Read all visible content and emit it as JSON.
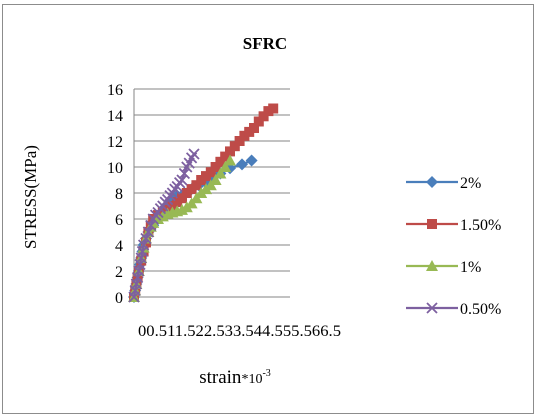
{
  "chart_data": {
    "type": "line",
    "title": "SFRC",
    "ylabel": "STRESS(MPa)",
    "xlabel_main": "strain",
    "xlabel_mult": "*10",
    "xlabel_exp": "-3",
    "x_tick_text": "00.511.522.533.544.555.566.5",
    "y_ticks": [
      0,
      2,
      4,
      6,
      8,
      10,
      12,
      14,
      16
    ],
    "xlim": [
      0,
      6.5
    ],
    "ylim": [
      0,
      16
    ],
    "grid": true,
    "legend_position": "right",
    "series": [
      {
        "name": "2%",
        "color": "#4a7ebb",
        "marker": "diamond",
        "x": [
          0.0,
          0.05,
          0.1,
          0.15,
          0.2,
          0.25,
          0.3,
          0.35,
          0.4,
          0.5,
          0.6,
          0.8,
          1.0,
          1.2,
          1.4,
          1.6,
          1.8,
          2.1,
          2.4,
          2.7,
          3.0,
          3.3,
          3.6,
          4.0,
          4.5,
          4.9
        ],
        "y": [
          0.0,
          0.5,
          1.0,
          1.5,
          2.0,
          2.5,
          3.0,
          3.5,
          4.0,
          4.5,
          5.0,
          5.5,
          6.0,
          6.5,
          7.0,
          7.6,
          7.8,
          8.0,
          8.3,
          8.6,
          8.8,
          9.2,
          9.5,
          9.9,
          10.2,
          10.5
        ]
      },
      {
        "name": "1.50%",
        "color": "#be4b48",
        "marker": "square",
        "x": [
          0.0,
          0.05,
          0.1,
          0.15,
          0.2,
          0.3,
          0.4,
          0.5,
          0.6,
          0.7,
          0.8,
          1.0,
          1.2,
          1.4,
          1.6,
          1.8,
          2.0,
          2.2,
          2.4,
          2.6,
          2.8,
          3.0,
          3.2,
          3.4,
          3.6,
          3.8,
          4.0,
          4.2,
          4.4,
          4.6,
          4.8,
          5.0,
          5.2,
          5.4,
          5.6,
          5.8
        ],
        "y": [
          0.0,
          0.5,
          1.0,
          1.5,
          2.0,
          2.8,
          3.5,
          4.2,
          5.0,
          5.5,
          6.0,
          6.3,
          6.5,
          6.7,
          7.0,
          7.3,
          7.6,
          8.0,
          8.3,
          8.6,
          9.0,
          9.3,
          9.6,
          10.0,
          10.4,
          10.8,
          11.2,
          11.6,
          12.0,
          12.4,
          12.7,
          13.0,
          13.5,
          13.9,
          14.3,
          14.5
        ]
      },
      {
        "name": "1%",
        "color": "#98b954",
        "marker": "triangle",
        "x": [
          0.0,
          0.05,
          0.1,
          0.2,
          0.3,
          0.4,
          0.5,
          0.6,
          0.7,
          0.8,
          1.0,
          1.2,
          1.4,
          1.6,
          1.8,
          2.0,
          2.2,
          2.4,
          2.6,
          2.8,
          3.0,
          3.2,
          3.4,
          3.6,
          3.8,
          4.0
        ],
        "y": [
          0.0,
          0.5,
          1.0,
          2.0,
          3.0,
          3.8,
          4.5,
          5.0,
          5.4,
          5.7,
          6.0,
          6.2,
          6.4,
          6.5,
          6.6,
          6.7,
          6.9,
          7.2,
          7.6,
          8.0,
          8.3,
          8.6,
          9.0,
          9.5,
          10.0,
          10.5
        ]
      },
      {
        "name": "0.50%",
        "color": "#7d60a0",
        "marker": "x",
        "x": [
          0.0,
          0.05,
          0.1,
          0.15,
          0.2,
          0.25,
          0.3,
          0.35,
          0.4,
          0.5,
          0.6,
          0.7,
          0.8,
          0.9,
          1.0,
          1.1,
          1.2,
          1.3,
          1.4,
          1.5,
          1.6,
          1.7,
          1.8,
          1.9,
          2.0,
          2.1,
          2.2,
          2.3,
          2.4,
          2.5
        ],
        "y": [
          0.0,
          0.5,
          1.0,
          1.5,
          2.0,
          2.5,
          3.0,
          3.5,
          4.0,
          4.5,
          5.0,
          5.5,
          6.0,
          6.3,
          6.5,
          6.8,
          7.0,
          7.3,
          7.5,
          7.8,
          8.0,
          8.3,
          8.5,
          8.8,
          9.0,
          9.5,
          10.0,
          10.3,
          10.7,
          11.0
        ]
      }
    ]
  }
}
